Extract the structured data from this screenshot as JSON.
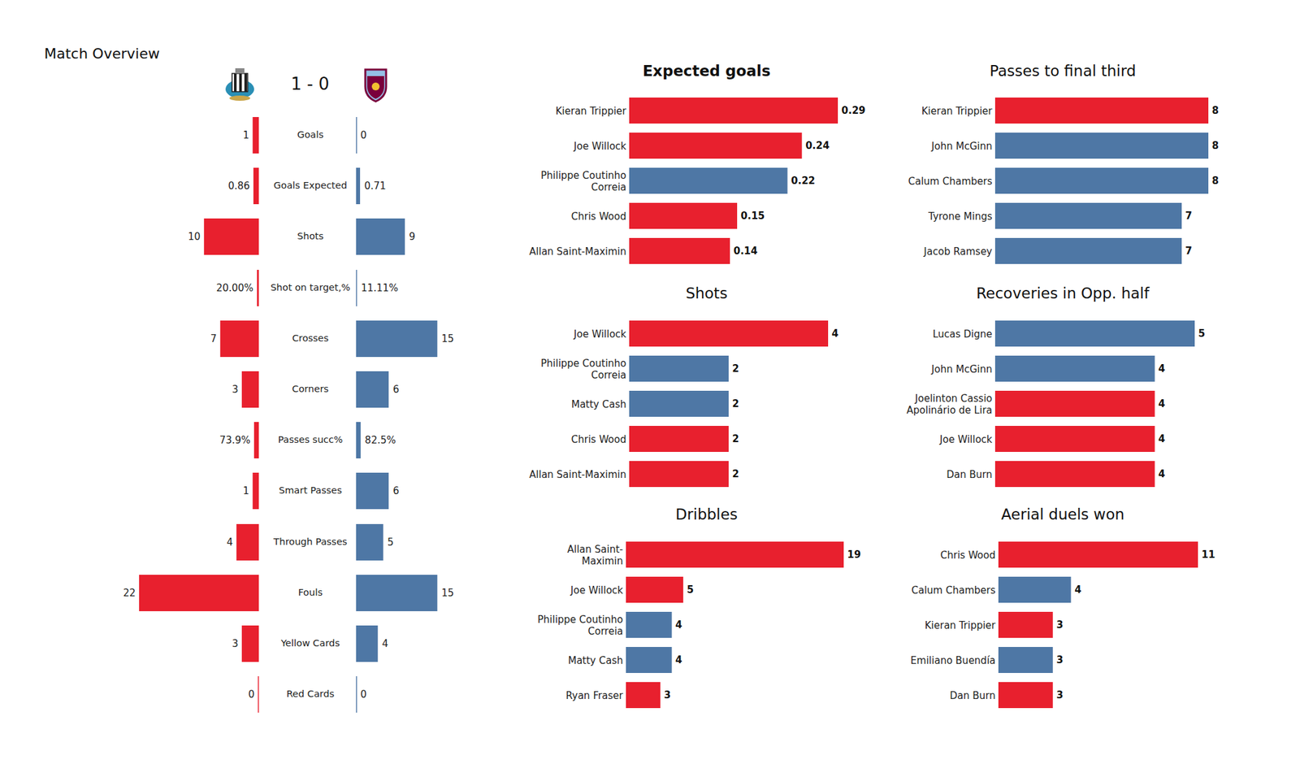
{
  "chart_data": [
    {
      "type": "bar",
      "orientation": "horizontal",
      "title": "Match Overview",
      "subtitle": "1 - 0",
      "categories": [
        "Goals",
        "Goals Expected",
        "Shots",
        "Shot on target,%",
        "Crosses",
        "Corners",
        "Passes succ%",
        "Smart Passes",
        "Through Passes",
        "Fouls",
        "Yellow Cards",
        "Red Cards"
      ],
      "series": [
        {
          "color": "#e8202e",
          "values": [
            1,
            0.86,
            10,
            20,
            7,
            3,
            73.9,
            1,
            4,
            22,
            3,
            0
          ],
          "value_labels": [
            "1",
            "0.86",
            "10",
            "20.00%",
            "7",
            "3",
            "73.9%",
            "1",
            "4",
            "22",
            "3",
            "0"
          ]
        },
        {
          "color": "#4e77a5",
          "values": [
            0,
            0.71,
            9,
            11.11,
            15,
            6,
            82.5,
            6,
            5,
            15,
            4,
            0
          ],
          "value_labels": [
            "0",
            "0.71",
            "9",
            "11.11%",
            "15",
            "6",
            "82.5%",
            "6",
            "5",
            "15",
            "4",
            "0"
          ]
        }
      ],
      "xlim_by_category": [
        [
          0,
          22
        ],
        [
          0,
          22
        ],
        [
          0,
          22
        ],
        [
          0,
          2200
        ],
        [
          0,
          22
        ],
        [
          0,
          22
        ],
        [
          0,
          2200
        ],
        [
          0,
          22
        ],
        [
          0,
          22
        ],
        [
          0,
          22
        ],
        [
          0,
          22
        ],
        [
          0,
          22
        ]
      ],
      "data_labels": true,
      "tick_labels": false
    },
    {
      "type": "bar",
      "orientation": "horizontal",
      "title": "Expected goals",
      "categories": [
        "Kieran Trippier",
        "Joe Willock",
        "Philippe Coutinho Correia",
        "Chris Wood",
        "Allan Saint-Maximin"
      ],
      "values": [
        0.29,
        0.24,
        0.22,
        0.15,
        0.14
      ],
      "colors": [
        "#e8202e",
        "#e8202e",
        "#4e77a5",
        "#e8202e",
        "#e8202e"
      ],
      "xlim": [
        0,
        0.29
      ],
      "data_labels": true,
      "tick_labels": false
    },
    {
      "type": "bar",
      "orientation": "horizontal",
      "title": "Shots",
      "categories": [
        "Joe Willock",
        "Philippe Coutinho Correia",
        "Matty Cash",
        "Chris Wood",
        "Allan Saint-Maximin"
      ],
      "values": [
        4,
        2,
        2,
        2,
        2
      ],
      "colors": [
        "#e8202e",
        "#4e77a5",
        "#4e77a5",
        "#e8202e",
        "#e8202e"
      ],
      "xlim": [
        0,
        4
      ],
      "data_labels": true,
      "tick_labels": false
    },
    {
      "type": "bar",
      "orientation": "horizontal",
      "title": "Dribbles",
      "categories": [
        "Allan Saint-Maximin",
        "Joe Willock",
        "Philippe Coutinho Correia",
        "Matty Cash",
        "Ryan Fraser"
      ],
      "values": [
        19,
        5,
        4,
        4,
        3
      ],
      "colors": [
        "#e8202e",
        "#e8202e",
        "#4e77a5",
        "#4e77a5",
        "#e8202e"
      ],
      "xlim": [
        0,
        19
      ],
      "data_labels": true,
      "tick_labels": false
    },
    {
      "type": "bar",
      "orientation": "horizontal",
      "title": "Passes to final third",
      "categories": [
        "Kieran Trippier",
        "John McGinn",
        "Calum Chambers",
        "Tyrone Mings",
        "Jacob Ramsey"
      ],
      "values": [
        8,
        8,
        8,
        7,
        7
      ],
      "colors": [
        "#e8202e",
        "#4e77a5",
        "#4e77a5",
        "#4e77a5",
        "#4e77a5"
      ],
      "xlim": [
        0,
        8
      ],
      "data_labels": true,
      "tick_labels": false
    },
    {
      "type": "bar",
      "orientation": "horizontal",
      "title": "Recoveries in Opp. half",
      "categories": [
        "Lucas Digne",
        "John McGinn",
        "Joelinton Cassio Apolinário de Lira",
        "Joe Willock",
        "Dan Burn"
      ],
      "values": [
        5,
        4,
        4,
        4,
        4
      ],
      "colors": [
        "#4e77a5",
        "#4e77a5",
        "#e8202e",
        "#e8202e",
        "#e8202e"
      ],
      "xlim": [
        0,
        5
      ],
      "data_labels": true,
      "tick_labels": false
    },
    {
      "type": "bar",
      "orientation": "horizontal",
      "title": "Aerial duels won",
      "categories": [
        "Chris Wood",
        "Calum Chambers",
        "Kieran Trippier",
        "Emiliano Buendía",
        "Dan Burn"
      ],
      "values": [
        11,
        4,
        3,
        3,
        3
      ],
      "colors": [
        "#e8202e",
        "#4e77a5",
        "#e8202e",
        "#4e77a5",
        "#e8202e"
      ],
      "xlim": [
        0,
        11
      ],
      "data_labels": true,
      "tick_labels": false
    }
  ]
}
